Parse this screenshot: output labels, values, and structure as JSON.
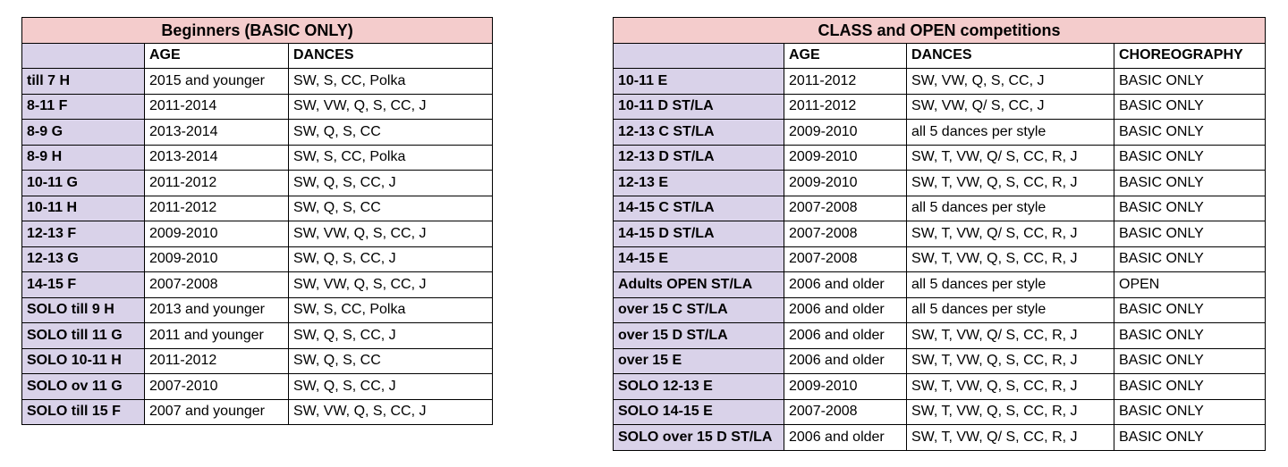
{
  "left_table": {
    "title": "Beginners (BASIC ONLY)",
    "headers": [
      "",
      "AGE",
      "DANCES"
    ],
    "rows": [
      [
        "till 7 H",
        "2015 and younger",
        "SW, S, CC, Polka"
      ],
      [
        "8-11 F",
        "2011-2014",
        "SW, VW, Q, S, CC, J"
      ],
      [
        "8-9 G",
        "2013-2014",
        "SW, Q, S, CC"
      ],
      [
        "8-9 H",
        "2013-2014",
        "SW, S, CC, Polka"
      ],
      [
        "10-11 G",
        "2011-2012",
        "SW, Q, S, CC, J"
      ],
      [
        "10-11 H",
        "2011-2012",
        "SW, Q, S, CC"
      ],
      [
        "12-13 F",
        "2009-2010",
        "SW, VW, Q, S, CC, J"
      ],
      [
        "12-13 G",
        "2009-2010",
        "SW, Q, S, CC, J"
      ],
      [
        "14-15 F",
        "2007-2008",
        "SW, VW, Q, S, CC, J"
      ],
      [
        "SOLO till 9 H",
        "2013 and younger",
        "SW, S, CC, Polka"
      ],
      [
        "SOLO till 11 G",
        "2011 and younger",
        "SW, Q, S, CC, J"
      ],
      [
        "SOLO 10-11 H",
        "2011-2012",
        "SW, Q, S, CC"
      ],
      [
        "SOLO ov 11 G",
        "2007-2010",
        "SW, Q, S, CC, J"
      ],
      [
        "SOLO till 15 F",
        "2007 and younger",
        "SW, VW, Q, S, CC, J"
      ]
    ]
  },
  "right_table": {
    "title": "CLASS and OPEN competitions",
    "headers": [
      "",
      "AGE",
      "DANCES",
      "CHOREOGRAPHY"
    ],
    "rows": [
      [
        "10-11 E",
        "2011-2012",
        "SW, VW, Q, S, CC, J",
        "BASIC ONLY"
      ],
      [
        "10-11 D ST/LA",
        "2011-2012",
        "SW, VW, Q/ S, CC, J",
        "BASIC ONLY"
      ],
      [
        "12-13 C ST/LA",
        "2009-2010",
        "all 5 dances per style",
        "BASIC ONLY"
      ],
      [
        "12-13 D ST/LA",
        "2009-2010",
        "SW, T, VW, Q/ S, CC, R, J",
        "BASIC ONLY"
      ],
      [
        "12-13 E",
        "2009-2010",
        "SW, T, VW, Q, S, CC, R, J",
        "BASIC ONLY"
      ],
      [
        "14-15 C ST/LA",
        "2007-2008",
        "all 5 dances per style",
        "BASIC ONLY"
      ],
      [
        "14-15 D ST/LA",
        "2007-2008",
        "SW, T, VW, Q/ S, CC, R, J",
        "BASIC ONLY"
      ],
      [
        "14-15 E",
        "2007-2008",
        "SW, T, VW, Q, S, CC, R, J",
        "BASIC ONLY"
      ],
      [
        "Adults OPEN ST/LA",
        "2006 and older",
        "all 5 dances per style",
        "OPEN"
      ],
      [
        "over 15 C ST/LA",
        "2006 and older",
        "all 5 dances per style",
        "BASIC ONLY"
      ],
      [
        "over 15 D ST/LA",
        "2006 and older",
        "SW, T, VW, Q/ S, CC, R, J",
        "BASIC ONLY"
      ],
      [
        "over 15 E",
        "2006 and older",
        "SW, T, VW, Q, S, CC, R, J",
        "BASIC ONLY"
      ],
      [
        "SOLO 12-13 E",
        "2009-2010",
        "SW, T, VW, Q, S, CC, R, J",
        "BASIC ONLY"
      ],
      [
        "SOLO 14-15 E",
        "2007-2008",
        "SW, T, VW, Q, S, CC, R, J",
        "BASIC ONLY"
      ],
      [
        "SOLO over 15 D ST/LA",
        "2006 and older",
        "SW, T, VW, Q/ S, CC, R, J",
        "BASIC ONLY"
      ]
    ]
  },
  "colors": {
    "title_bg": "#f4cccc",
    "category_bg": "#d9d2e9"
  }
}
